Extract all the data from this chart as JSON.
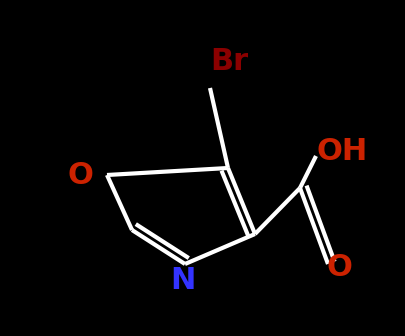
{
  "background_color": "#000000",
  "figsize": [
    4.05,
    3.36
  ],
  "dpi": 100,
  "bond_color": "#ffffff",
  "bond_lw": 3.0,
  "atom_colors": {
    "C": "#ffffff",
    "O": "#cc2200",
    "N": "#3333ff",
    "Br": "#8b0000"
  },
  "label_fontsize": 22
}
